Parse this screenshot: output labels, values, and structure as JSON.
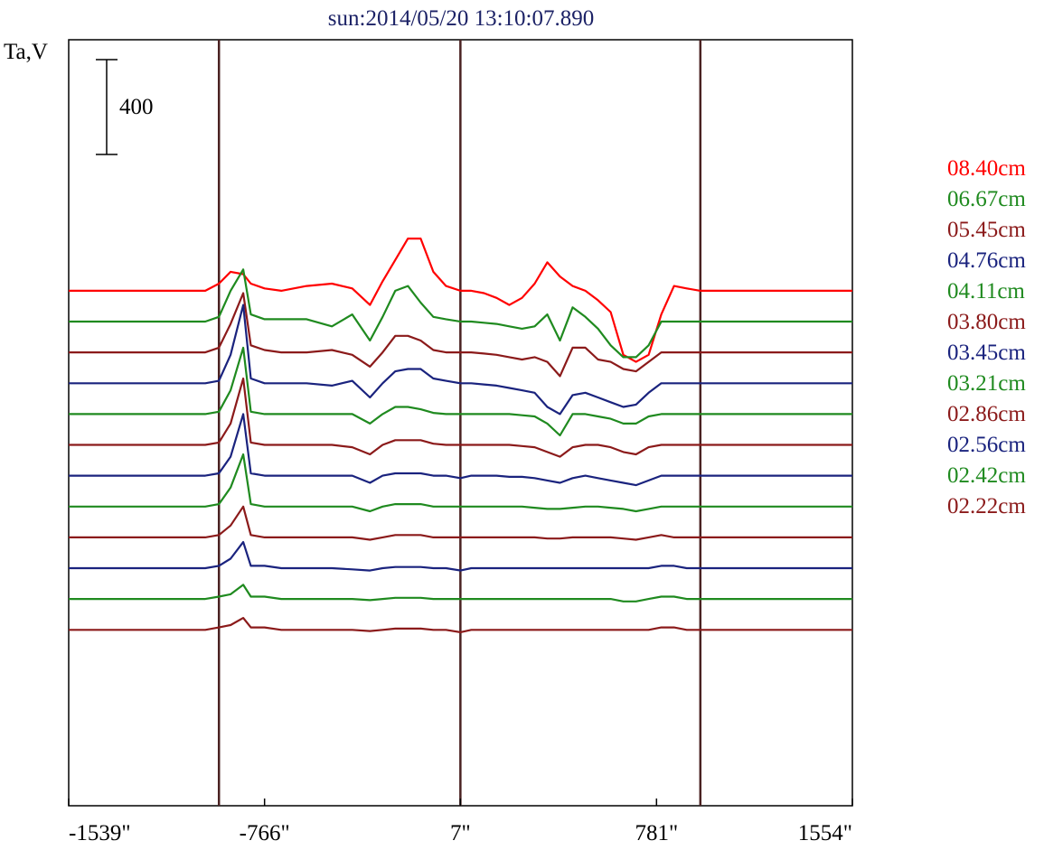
{
  "chart_data": {
    "type": "line",
    "title": "sun:2014/05/20 13:10:07.890",
    "ylabel": "Ta,V",
    "scale_bar_label": "400",
    "scale_bar_value": 400,
    "xlim": [
      -1539,
      1554
    ],
    "x_ticks": [
      {
        "value": -1539,
        "label": "-1539\""
      },
      {
        "value": -766,
        "label": "-766\""
      },
      {
        "value": 7,
        "label": "7\""
      },
      {
        "value": 781,
        "label": "781\""
      },
      {
        "value": 1554,
        "label": "1554\""
      }
    ],
    "disk_edge_lines": [
      -946,
      7,
      954
    ],
    "x_points": [
      -1539,
      -1200,
      -1000,
      -946,
      -900,
      -850,
      -820,
      -766,
      -700,
      -600,
      -500,
      -420,
      -350,
      -300,
      -250,
      -200,
      -150,
      -100,
      -50,
      7,
      50,
      100,
      150,
      200,
      250,
      300,
      350,
      400,
      450,
      500,
      550,
      600,
      650,
      700,
      750,
      800,
      850,
      900,
      954,
      1000,
      1200,
      1554
    ],
    "series": [
      {
        "name": "08.40cm",
        "color": "#ff0000",
        "offset": 930,
        "values": [
          0,
          0,
          0,
          30,
          80,
          70,
          30,
          10,
          0,
          20,
          30,
          10,
          -60,
          40,
          130,
          220,
          220,
          80,
          20,
          0,
          0,
          -10,
          -30,
          -60,
          -30,
          30,
          120,
          60,
          20,
          0,
          -40,
          -90,
          -270,
          -300,
          -270,
          -100,
          20,
          10,
          0,
          0,
          0,
          0
        ]
      },
      {
        "name": "06.67cm",
        "color": "#1f8a1f",
        "offset": 800,
        "values": [
          0,
          0,
          0,
          20,
          130,
          220,
          30,
          10,
          10,
          10,
          -20,
          30,
          -80,
          20,
          130,
          150,
          80,
          20,
          10,
          0,
          0,
          -5,
          -10,
          -20,
          -30,
          -20,
          30,
          -80,
          60,
          20,
          -30,
          -100,
          -150,
          -150,
          -100,
          0,
          0,
          0,
          0,
          0,
          0,
          0
        ]
      },
      {
        "name": "05.45cm",
        "color": "#8b1a1a",
        "offset": 670,
        "values": [
          0,
          0,
          0,
          20,
          120,
          250,
          30,
          10,
          0,
          0,
          10,
          -10,
          -60,
          0,
          70,
          70,
          50,
          10,
          0,
          0,
          0,
          -5,
          -10,
          -20,
          -30,
          -20,
          -40,
          -100,
          20,
          20,
          -30,
          -40,
          -70,
          -80,
          -40,
          0,
          0,
          0,
          0,
          0,
          0,
          0
        ]
      },
      {
        "name": "04.76cm",
        "color": "#1a237e",
        "offset": 540,
        "values": [
          0,
          0,
          0,
          10,
          120,
          330,
          20,
          0,
          0,
          0,
          -10,
          10,
          -60,
          0,
          50,
          60,
          60,
          20,
          10,
          0,
          0,
          -5,
          -10,
          -20,
          -30,
          -40,
          -100,
          -130,
          -50,
          -40,
          -60,
          -80,
          -100,
          -90,
          -40,
          0,
          0,
          0,
          0,
          0,
          0,
          0
        ]
      },
      {
        "name": "04.11cm",
        "color": "#1f8a1f",
        "offset": 410,
        "values": [
          0,
          0,
          0,
          10,
          100,
          280,
          10,
          0,
          0,
          0,
          0,
          0,
          -40,
          0,
          30,
          30,
          20,
          5,
          0,
          0,
          0,
          0,
          0,
          0,
          -5,
          -10,
          -40,
          -90,
          0,
          0,
          -10,
          -20,
          -40,
          -40,
          -10,
          0,
          0,
          0,
          0,
          0,
          0,
          0
        ]
      },
      {
        "name": "03.80cm",
        "color": "#8b1a1a",
        "offset": 280,
        "values": [
          0,
          0,
          0,
          10,
          90,
          280,
          10,
          0,
          0,
          0,
          0,
          -10,
          -40,
          0,
          20,
          20,
          20,
          5,
          0,
          0,
          0,
          0,
          0,
          0,
          -5,
          -10,
          -30,
          -50,
          -10,
          0,
          0,
          -10,
          -30,
          -40,
          -10,
          0,
          0,
          0,
          0,
          0,
          0,
          0
        ]
      },
      {
        "name": "03.45cm",
        "color": "#1a237e",
        "offset": 150,
        "values": [
          0,
          0,
          0,
          10,
          80,
          260,
          10,
          0,
          0,
          0,
          0,
          0,
          -30,
          0,
          10,
          10,
          10,
          0,
          0,
          -10,
          0,
          0,
          0,
          -5,
          -5,
          -10,
          -20,
          -30,
          -10,
          0,
          -10,
          -20,
          -30,
          -40,
          -20,
          0,
          0,
          0,
          0,
          0,
          0,
          0
        ]
      },
      {
        "name": "03.21cm",
        "color": "#1f8a1f",
        "offset": 20,
        "values": [
          0,
          0,
          0,
          10,
          80,
          220,
          10,
          0,
          0,
          0,
          0,
          0,
          -20,
          0,
          10,
          10,
          10,
          0,
          0,
          0,
          0,
          0,
          0,
          0,
          0,
          -5,
          -10,
          -10,
          -5,
          0,
          0,
          -5,
          -10,
          -20,
          -10,
          0,
          0,
          0,
          0,
          0,
          0,
          0
        ]
      },
      {
        "name": "02.86cm",
        "color": "#8b1a1a",
        "offset": -110,
        "values": [
          0,
          0,
          0,
          10,
          50,
          130,
          10,
          0,
          0,
          0,
          0,
          0,
          -10,
          0,
          10,
          10,
          10,
          0,
          0,
          0,
          0,
          0,
          0,
          0,
          0,
          0,
          -5,
          -5,
          0,
          0,
          0,
          0,
          -5,
          -10,
          0,
          10,
          0,
          0,
          0,
          0,
          0,
          0
        ]
      },
      {
        "name": "02.56cm",
        "color": "#1a237e",
        "offset": -240,
        "values": [
          0,
          0,
          0,
          10,
          40,
          110,
          10,
          10,
          0,
          0,
          0,
          -5,
          -10,
          0,
          5,
          5,
          5,
          0,
          0,
          -10,
          0,
          0,
          0,
          0,
          0,
          0,
          0,
          0,
          0,
          0,
          0,
          0,
          0,
          0,
          0,
          10,
          10,
          0,
          0,
          0,
          0,
          0
        ]
      },
      {
        "name": "02.42cm",
        "color": "#1f8a1f",
        "offset": -370,
        "values": [
          0,
          0,
          0,
          10,
          20,
          60,
          10,
          10,
          0,
          0,
          0,
          0,
          -5,
          0,
          5,
          5,
          5,
          0,
          0,
          0,
          0,
          0,
          0,
          0,
          0,
          0,
          0,
          0,
          0,
          0,
          0,
          0,
          -10,
          -10,
          0,
          10,
          10,
          0,
          0,
          0,
          0,
          0
        ]
      },
      {
        "name": "02.22cm",
        "color": "#8b1a1a",
        "offset": -500,
        "values": [
          0,
          0,
          0,
          10,
          20,
          50,
          10,
          10,
          0,
          0,
          0,
          0,
          -5,
          0,
          5,
          5,
          5,
          0,
          0,
          -10,
          0,
          0,
          0,
          0,
          0,
          0,
          0,
          0,
          0,
          0,
          0,
          0,
          0,
          0,
          0,
          10,
          10,
          0,
          0,
          0,
          0,
          0
        ]
      }
    ]
  }
}
